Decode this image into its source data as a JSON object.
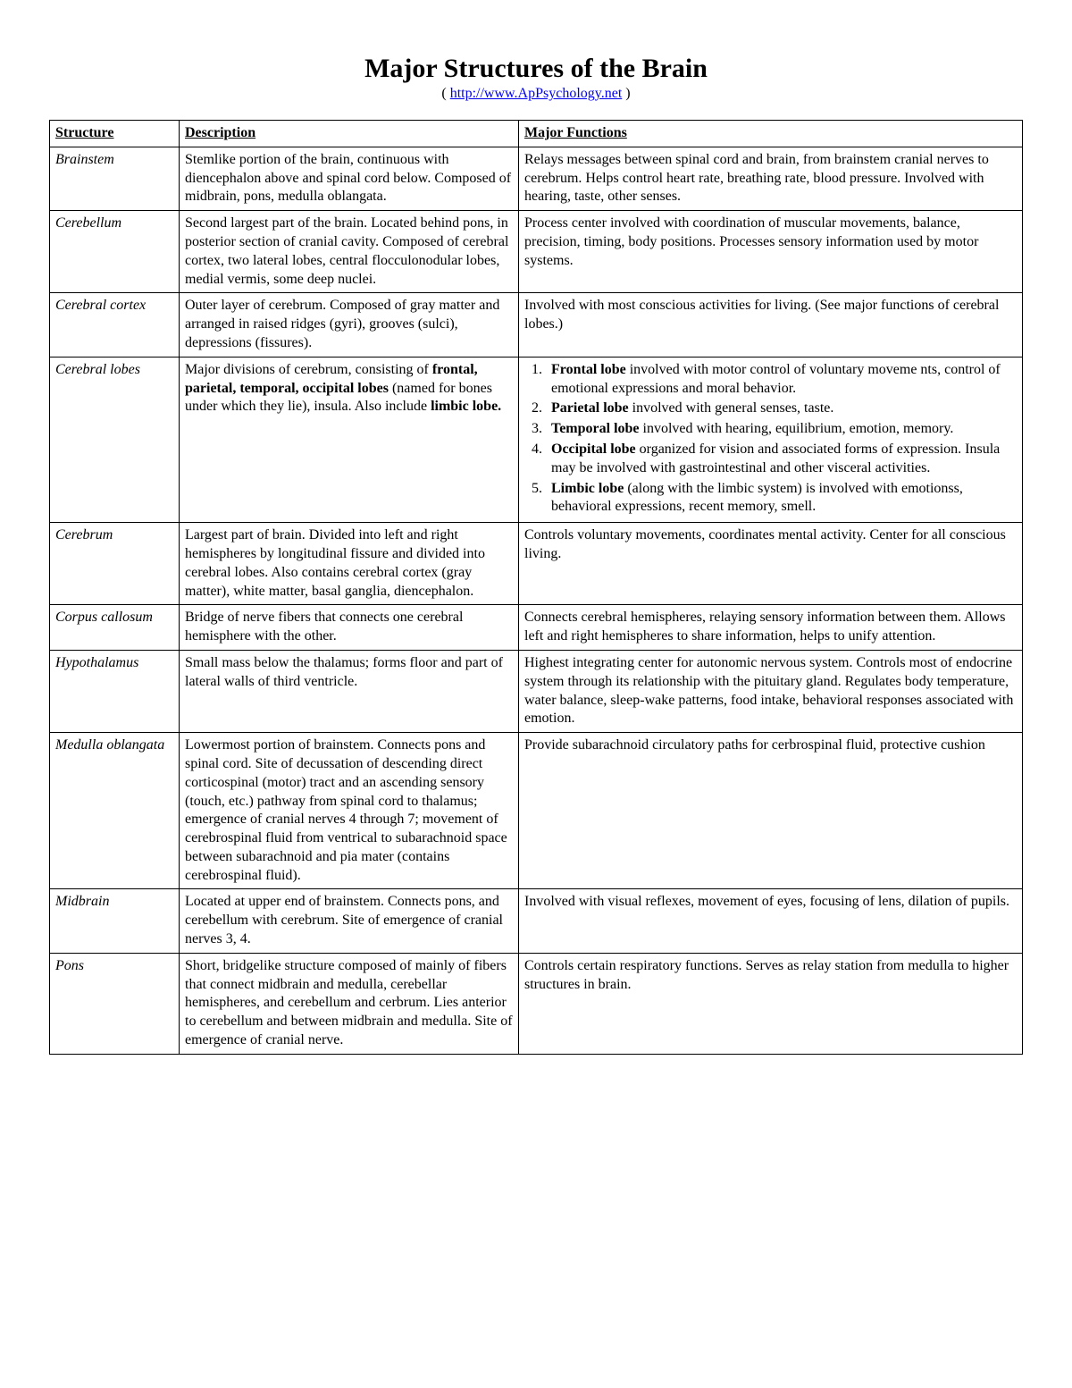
{
  "title": "Major Structures of the Brain",
  "source_prefix": "( ",
  "source_link": "http://www.ApPsychology.net",
  "source_suffix": " )",
  "columns": {
    "c1": "Structure",
    "c2": "Description",
    "c3": "Major Functions"
  },
  "rows": {
    "brainstem": {
      "name": "Brainstem",
      "desc": "Stemlike portion of the brain, continuous with diencephalon above and spinal cord below. Composed of midbrain, pons, medulla oblangata.",
      "func": "Relays messages between spinal cord and brain, from brainstem cranial nerves to cerebrum. Helps control heart rate, breathing rate, blood pressure. Involved with hearing, taste, other senses."
    },
    "cerebellum": {
      "name": "Cerebellum",
      "desc": "Second largest part of the brain. Located behind pons, in posterior section of cranial cavity. Composed of cerebral cortex, two lateral lobes, central flocculonodular lobes, medial vermis, some deep nuclei.",
      "func": "Process center involved with coordination of muscular movements, balance, precision, timing, body positions. Processes sensory information used by motor systems."
    },
    "cortex": {
      "name": "Cerebral cortex",
      "desc": "Outer layer of cerebrum. Composed of gray matter and arranged in raised ridges (gyri), grooves (sulci), depressions (fissures).",
      "func": "Involved with most conscious activities for living. (See major functions of cerebral lobes.)"
    },
    "lobes": {
      "name": "Cerebral lobes",
      "desc_pre": "Major divisions of cerebrum, consisting of ",
      "desc_bold": "frontal, parietal, temporal, occipital lobes",
      "desc_mid": " (named for bones under which they lie), insula. Also include ",
      "desc_bold2": "limbic lobe.",
      "items": {
        "i1b": "Frontal lobe",
        "i1": " involved with motor control of voluntary moveme nts, control of emotional expressions and moral behavior.",
        "i2b": "Parietal lobe",
        "i2": " involved with general senses, taste.",
        "i3b": "Temporal lobe",
        "i3": " involved with hearing, equilibrium, emotion, memory.",
        "i4b": "Occipital lobe",
        "i4": " organized for vision and associated forms of expression. Insula may be involved with gastrointestinal and other visceral activities.",
        "i5b": "Limbic lobe",
        "i5": " (along with the limbic system) is involved with emotionss, behavioral expressions, recent memory, smell."
      }
    },
    "cerebrum": {
      "name": "Cerebrum",
      "desc": "Largest part of brain. Divided into left and right hemispheres by longitudinal fissure and divided into cerebral lobes. Also contains cerebral cortex (gray matter), white matter, basal ganglia, diencephalon.",
      "func": "Controls voluntary movements, coordinates mental activity. Center for all conscious living."
    },
    "corpus": {
      "name": "Corpus callosum",
      "desc": "Bridge of nerve fibers that connects one cerebral hemisphere with the other.",
      "func": "Connects cerebral hemispheres, relaying sensory information between them. Allows left and right hemispheres to share information, helps to unify attention."
    },
    "hypothalamus": {
      "name": "Hypothalamus",
      "desc": "Small mass below the thalamus; forms floor and part of lateral walls of third ventricle.",
      "func": "Highest integrating center for autonomic nervous system. Controls most of endocrine system through its relationship with the pituitary gland. Regulates body temperature, water balance, sleep-wake patterns, food intake, behavioral responses associated with emotion."
    },
    "medulla": {
      "name": "Medulla oblangata",
      "desc": "Lowermost portion of brainstem. Connects pons and spinal cord. Site of decussation of descending direct corticospinal (motor) tract and an ascending sensory (touch, etc.) pathway from spinal cord to thalamus; emergence of cranial nerves 4 through 7; movement of cerebrospinal fluid from ventrical to subarachnoid space between subarachnoid and pia mater (contains cerebrospinal fluid).",
      "func": "Provide subarachnoid circulatory paths for cerbrospinal fluid, protective cushion"
    },
    "midbrain": {
      "name": "Midbrain",
      "desc": "Located at upper end of brainstem. Connects pons, and cerebellum with cerebrum. Site of emergence of cranial nerves 3, 4.",
      "func": "Involved with visual reflexes, movement of eyes, focusing of lens, dilation of pupils."
    },
    "pons": {
      "name": "Pons",
      "desc": "Short, bridgelike structure composed of mainly of fibers that connect midbrain and medulla, cerebellar hemispheres, and cerebellum and cerbrum. Lies anterior to cerebellum and between midbrain and medulla. Site of emergence of cranial nerve.",
      "func": "Controls certain respiratory functions. Serves as relay station from medulla to higher structures in brain."
    }
  }
}
